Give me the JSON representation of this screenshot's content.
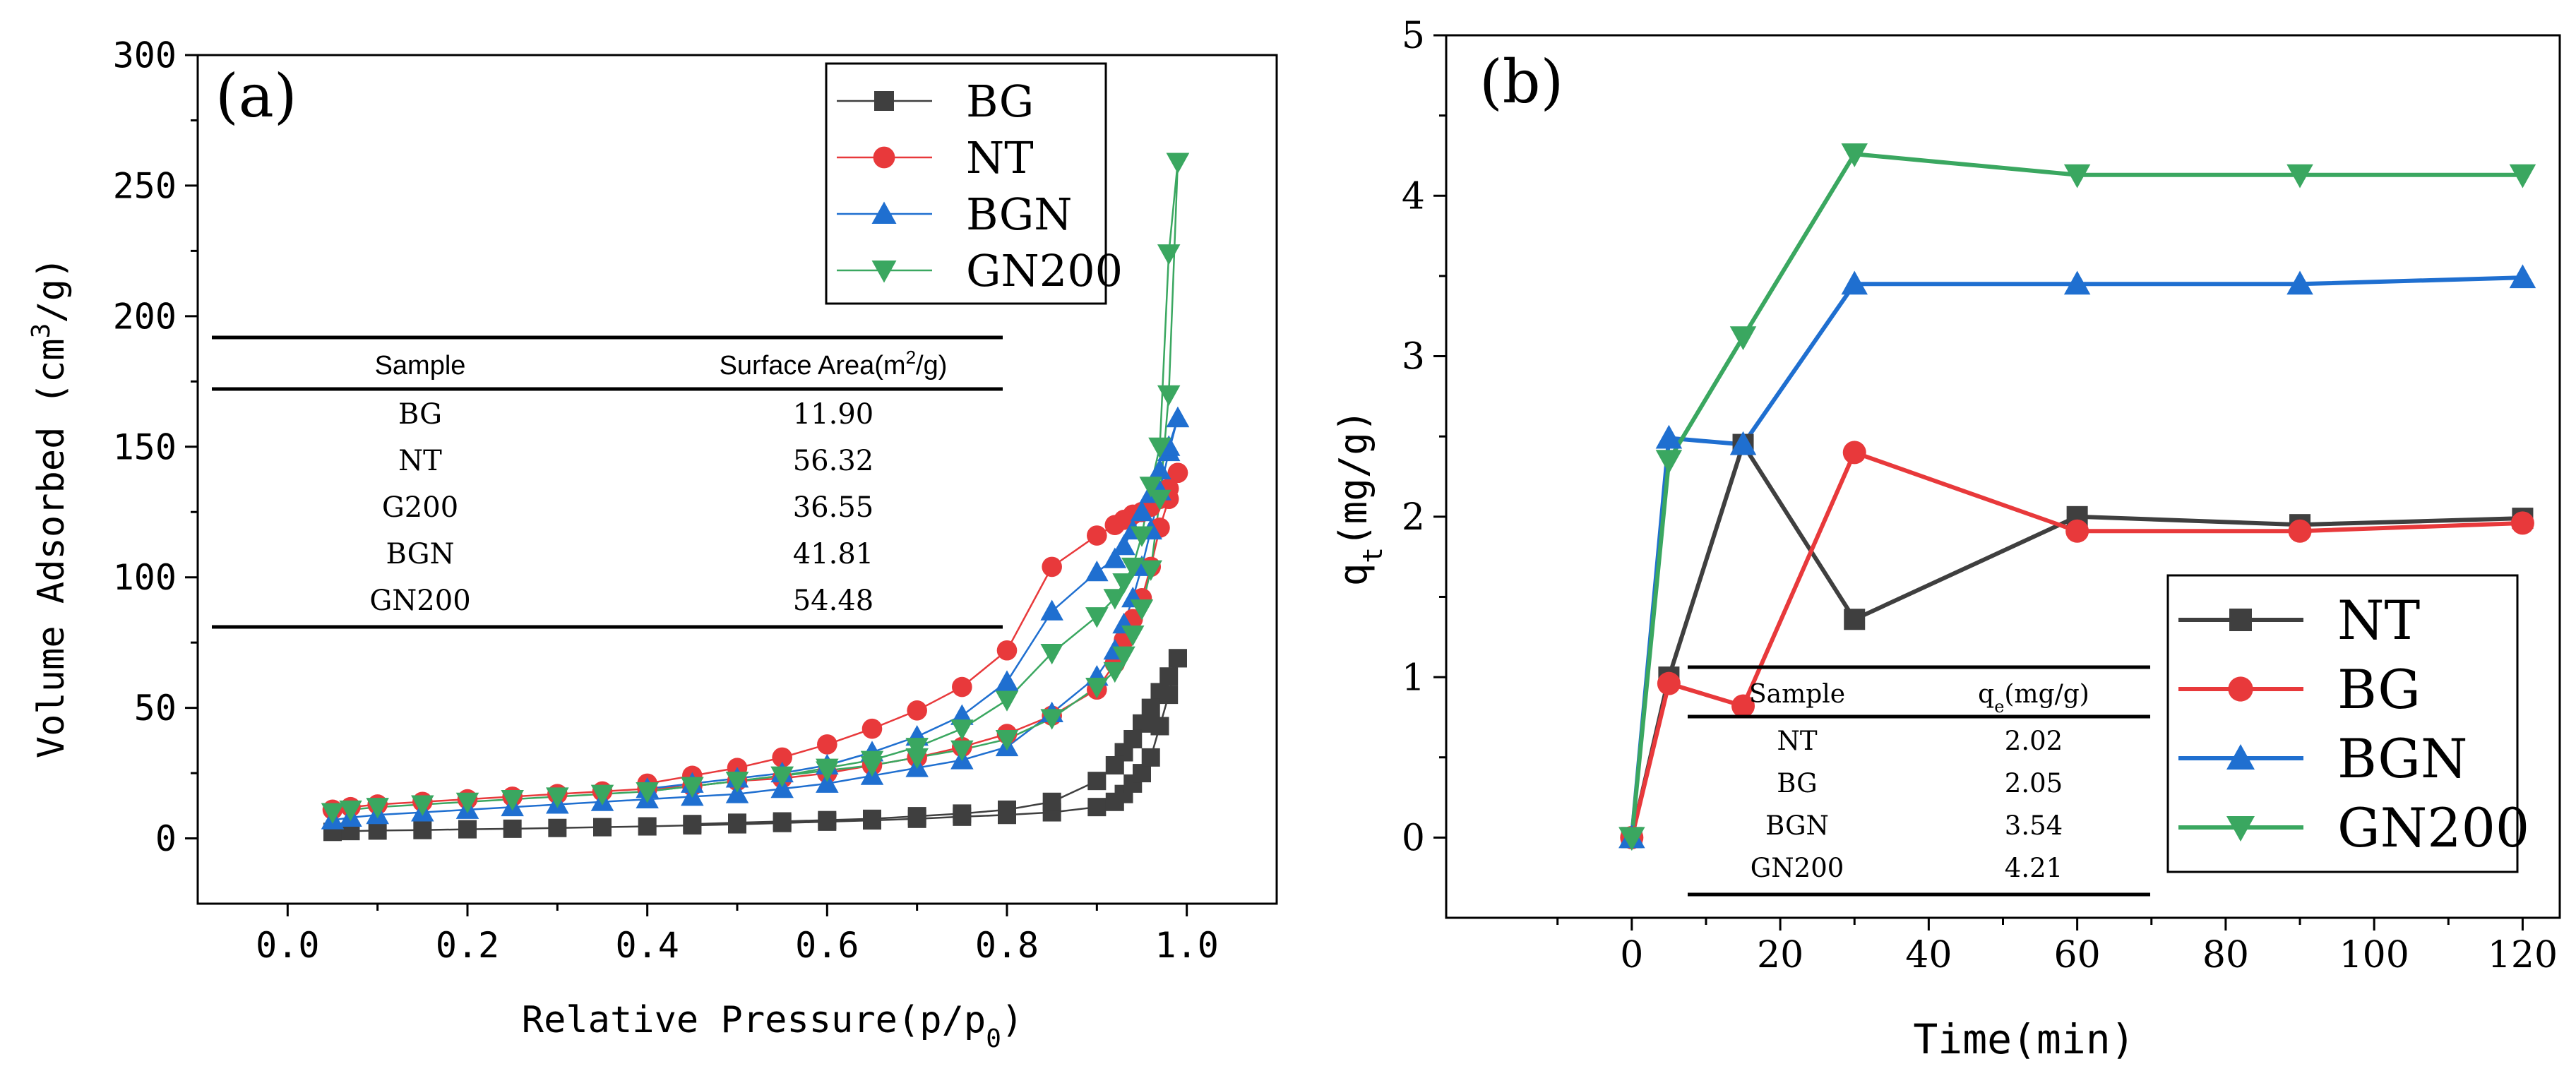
{
  "chart_data": [
    {
      "type": "scatter",
      "panel_label": "(a)",
      "xlabel": "Relative Pressure(p/p",
      "xlabel_sub": "0",
      "xlabel_suffix": ")",
      "ylabel_prefix": "Volume Adsorbed (cm",
      "ylabel_sup": "3",
      "ylabel_suffix": "/g)",
      "xlim": [
        -0.1,
        1.1
      ],
      "ylim": [
        -25,
        300
      ],
      "xticks": [
        0.0,
        0.2,
        0.4,
        0.6,
        0.8,
        1.0
      ],
      "xtick_labels": [
        "0.0",
        "0.2",
        "0.4",
        "0.6",
        "0.8",
        "1.0"
      ],
      "yticks": [
        0,
        50,
        100,
        150,
        200,
        250,
        300
      ],
      "ytick_labels": [
        "0",
        "50",
        "100",
        "150",
        "200",
        "250",
        "300"
      ],
      "legend_position": "top-right",
      "series": [
        {
          "name": "BG",
          "color": "#3f3f3f",
          "marker": "square",
          "adsorption": {
            "x": [
              0.05,
              0.07,
              0.1,
              0.15,
              0.2,
              0.25,
              0.3,
              0.35,
              0.4,
              0.45,
              0.5,
              0.55,
              0.6,
              0.65,
              0.7,
              0.75,
              0.8,
              0.85,
              0.9,
              0.92,
              0.93,
              0.94,
              0.95,
              0.96,
              0.97,
              0.98,
              0.99
            ],
            "y": [
              2.5,
              2.8,
              3.0,
              3.2,
              3.5,
              3.7,
              4.0,
              4.3,
              4.6,
              5.0,
              5.4,
              5.9,
              6.4,
              6.9,
              7.5,
              8.3,
              9.0,
              10,
              12,
              14,
              17,
              21,
              25,
              31,
              43,
              55,
              69
            ]
          },
          "desorption": {
            "x": [
              0.99,
              0.98,
              0.97,
              0.96,
              0.95,
              0.94,
              0.93,
              0.92,
              0.9,
              0.85,
              0.8,
              0.75,
              0.7,
              0.65,
              0.6,
              0.55,
              0.5,
              0.45
            ],
            "y": [
              69,
              62,
              56,
              50,
              44,
              38,
              33,
              28,
              22,
              14,
              11,
              9.5,
              8.5,
              7.5,
              7.0,
              6.5,
              6.0,
              5.5
            ]
          }
        },
        {
          "name": "NT",
          "color": "#e8393b",
          "marker": "circle",
          "adsorption": {
            "x": [
              0.05,
              0.07,
              0.1,
              0.15,
              0.2,
              0.25,
              0.3,
              0.35,
              0.4,
              0.45,
              0.5,
              0.55,
              0.6,
              0.65,
              0.7,
              0.75,
              0.8,
              0.85,
              0.9,
              0.92,
              0.93,
              0.94,
              0.95,
              0.96,
              0.97,
              0.98,
              0.99
            ],
            "y": [
              11,
              12,
              13,
              14,
              15,
              16,
              17,
              18,
              19,
              20,
              22,
              23,
              25,
              28,
              31,
              35,
              40,
              47,
              57,
              67,
              76,
              84,
              92,
              104,
              119,
              130,
              140
            ]
          },
          "desorption": {
            "x": [
              0.99,
              0.98,
              0.97,
              0.96,
              0.95,
              0.94,
              0.93,
              0.92,
              0.9,
              0.85,
              0.8,
              0.75,
              0.7,
              0.65,
              0.6,
              0.55,
              0.5,
              0.45,
              0.4
            ],
            "y": [
              140,
              134,
              130,
              127,
              125,
              124,
              122,
              120,
              116,
              104,
              72,
              58,
              49,
              42,
              36,
              31,
              27,
              24,
              21
            ]
          }
        },
        {
          "name": "BGN",
          "color": "#1f6fd0",
          "marker": "triangle-up",
          "adsorption": {
            "x": [
              0.05,
              0.07,
              0.1,
              0.15,
              0.2,
              0.25,
              0.3,
              0.35,
              0.4,
              0.45,
              0.5,
              0.55,
              0.6,
              0.65,
              0.7,
              0.75,
              0.8,
              0.85,
              0.9,
              0.92,
              0.93,
              0.94,
              0.95,
              0.96,
              0.97,
              0.98,
              0.99
            ],
            "y": [
              7,
              8,
              9,
              10,
              11,
              12,
              13,
              14,
              15,
              16,
              17,
              19,
              21,
              24,
              27,
              30,
              35,
              48,
              62,
              72,
              82,
              92,
              104,
              118,
              133,
              148,
              161
            ]
          },
          "desorption": {
            "x": [
              0.99,
              0.98,
              0.97,
              0.96,
              0.95,
              0.94,
              0.93,
              0.92,
              0.9,
              0.85,
              0.8,
              0.75,
              0.7,
              0.65,
              0.6,
              0.55,
              0.5,
              0.45,
              0.4
            ],
            "y": [
              161,
              150,
              141,
              132,
              125,
              118,
              112,
              107,
              102,
              87,
              60,
              47,
              39,
              33,
              28,
              25,
              23,
              21,
              19
            ]
          }
        },
        {
          "name": "GN200",
          "color": "#3aa760",
          "marker": "triangle-down",
          "adsorption": {
            "x": [
              0.05,
              0.07,
              0.1,
              0.15,
              0.2,
              0.25,
              0.3,
              0.35,
              0.4,
              0.45,
              0.5,
              0.55,
              0.6,
              0.65,
              0.7,
              0.75,
              0.8,
              0.85,
              0.9,
              0.92,
              0.93,
              0.94,
              0.95,
              0.96,
              0.97,
              0.98,
              0.99
            ],
            "y": [
              10,
              11,
              12,
              13,
              14,
              15,
              16,
              17,
              18,
              20,
              22,
              24,
              26,
              28,
              31,
              34,
              38,
              46,
              58,
              64,
              70,
              78,
              88,
              103,
              130,
              170,
              259
            ]
          },
          "desorption": {
            "x": [
              0.99,
              0.98,
              0.97,
              0.96,
              0.95,
              0.94,
              0.93,
              0.92,
              0.9,
              0.85,
              0.8,
              0.75,
              0.7,
              0.65,
              0.6,
              0.55,
              0.5,
              0.45,
              0.4
            ],
            "y": [
              259,
              224,
              150,
              135,
              116,
              104,
              98,
              92,
              85,
              71,
              53,
              42,
              35,
              30,
              27,
              24,
              22,
              20,
              18
            ]
          }
        }
      ],
      "inset_table": {
        "headers": [
          "Sample",
          "Surface Area(m",
          "2",
          "/g)"
        ],
        "rows": [
          [
            "BG",
            "11.90"
          ],
          [
            "NT",
            "56.32"
          ],
          [
            "G200",
            "36.55"
          ],
          [
            "BGN",
            "41.81"
          ],
          [
            "GN200",
            "54.48"
          ]
        ]
      }
    },
    {
      "type": "line",
      "panel_label": "(b)",
      "xlabel": "Time(min)",
      "ylabel_prefix": "q",
      "ylabel_sub": "t",
      "ylabel_suffix": "(mg/g)",
      "xlim": [
        -25,
        125
      ],
      "ylim": [
        -0.5,
        5
      ],
      "xticks": [
        0,
        20,
        40,
        60,
        80,
        100,
        120
      ],
      "xtick_labels": [
        "0",
        "20",
        "40",
        "60",
        "80",
        "100",
        "120"
      ],
      "yticks": [
        0,
        1,
        2,
        3,
        4,
        5
      ],
      "ytick_labels": [
        "0",
        "1",
        "2",
        "3",
        "4",
        "5"
      ],
      "legend_position": "bottom-right",
      "x": [
        0,
        5,
        15,
        30,
        60,
        90,
        120
      ],
      "series": [
        {
          "name": "NT",
          "color": "#3f3f3f",
          "marker": "square",
          "values": [
            0,
            1.0,
            2.45,
            1.36,
            2.0,
            1.95,
            1.99
          ]
        },
        {
          "name": "BG",
          "color": "#e8393b",
          "marker": "circle",
          "values": [
            0,
            0.96,
            0.82,
            2.4,
            1.91,
            1.91,
            1.96
          ]
        },
        {
          "name": "BGN",
          "color": "#1f6fd0",
          "marker": "triangle-up",
          "values": [
            0,
            2.49,
            2.45,
            3.45,
            3.45,
            3.45,
            3.49
          ]
        },
        {
          "name": "GN200",
          "color": "#3aa760",
          "marker": "triangle-down",
          "values": [
            0,
            2.35,
            3.12,
            4.26,
            4.13,
            4.13,
            4.13
          ]
        }
      ],
      "inset_table": {
        "headers": [
          "Sample",
          "q",
          "e",
          "(mg/g)"
        ],
        "rows": [
          [
            "NT",
            "2.02"
          ],
          [
            "BG",
            "2.05"
          ],
          [
            "BGN",
            "3.54"
          ],
          [
            "GN200",
            "4.21"
          ]
        ]
      }
    }
  ]
}
